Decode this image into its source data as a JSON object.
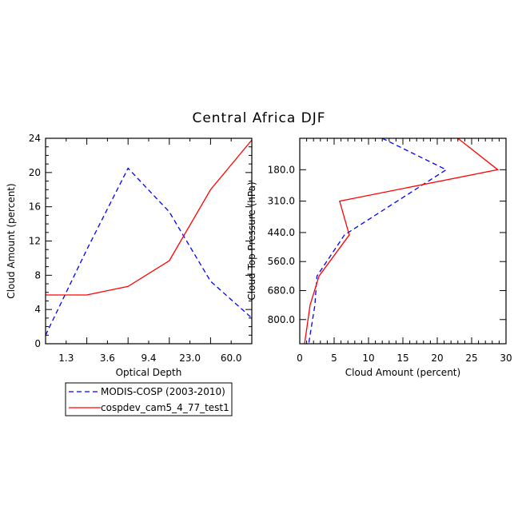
{
  "title": "Central Africa DJF",
  "colors": {
    "obs": "#0000ff",
    "model": "#ff0000",
    "axis": "#000000"
  },
  "legend": {
    "entries": [
      {
        "label": "MODIS-COSP (2003-2010)",
        "color": "#0000ff",
        "dash": true
      },
      {
        "label": "cospdev_cam5_4_77_test1",
        "color": "#ff0000",
        "dash": false
      }
    ]
  },
  "chart_data": [
    {
      "type": "line",
      "title": "",
      "xlabel": "Optical Depth",
      "ylabel": "Cloud Amount (percent)",
      "xticklabels": [
        "1.3",
        "3.6",
        "9.4",
        "23.0",
        "60.0"
      ],
      "x_index": [
        0,
        1,
        2,
        3,
        4,
        5
      ],
      "ylim": [
        0,
        24
      ],
      "yticks": [
        0,
        4,
        8,
        12,
        16,
        20,
        24
      ],
      "series": [
        {
          "name": "MODIS-COSP (2003-2010)",
          "color": "#0000ff",
          "dash": true,
          "values": [
            1.0,
            11.0,
            20.5,
            15.4,
            7.3,
            3.0
          ]
        },
        {
          "name": "cospdev_cam5_4_77_test1",
          "color": "#ff0000",
          "dash": false,
          "values": [
            5.7,
            5.7,
            6.7,
            9.7,
            18.0,
            23.8
          ]
        }
      ]
    },
    {
      "type": "line",
      "title": "",
      "xlabel": "Cloud Amount (percent)",
      "ylabel": "Cloud Top Pressure (hPa)",
      "xlim": [
        0,
        30
      ],
      "xticks": [
        0,
        5,
        10,
        15,
        20,
        25,
        30
      ],
      "ylim": [
        50,
        900
      ],
      "ytick_values": [
        180,
        310,
        440,
        560,
        680,
        800
      ],
      "yticklabels": [
        "180.0",
        "310.0",
        "440.0",
        "560.0",
        "680.0",
        "800.0"
      ],
      "series": [
        {
          "name": "MODIS-COSP (2003-2010)",
          "color": "#0000ff",
          "dash": true,
          "points": [
            {
              "x": 12.0,
              "p": 50
            },
            {
              "x": 21.3,
              "p": 180
            },
            {
              "x": 6.5,
              "p": 450
            },
            {
              "x": 2.5,
              "p": 620
            },
            {
              "x": 2.2,
              "p": 740
            },
            {
              "x": 1.3,
              "p": 900
            }
          ]
        },
        {
          "name": "cospdev_cam5_4_77_test1",
          "color": "#ff0000",
          "dash": false,
          "points": [
            {
              "x": 23.0,
              "p": 50
            },
            {
              "x": 28.8,
              "p": 180
            },
            {
              "x": 5.8,
              "p": 310
            },
            {
              "x": 7.2,
              "p": 450
            },
            {
              "x": 2.8,
              "p": 620
            },
            {
              "x": 1.5,
              "p": 740
            },
            {
              "x": 0.7,
              "p": 900
            }
          ]
        }
      ]
    }
  ]
}
